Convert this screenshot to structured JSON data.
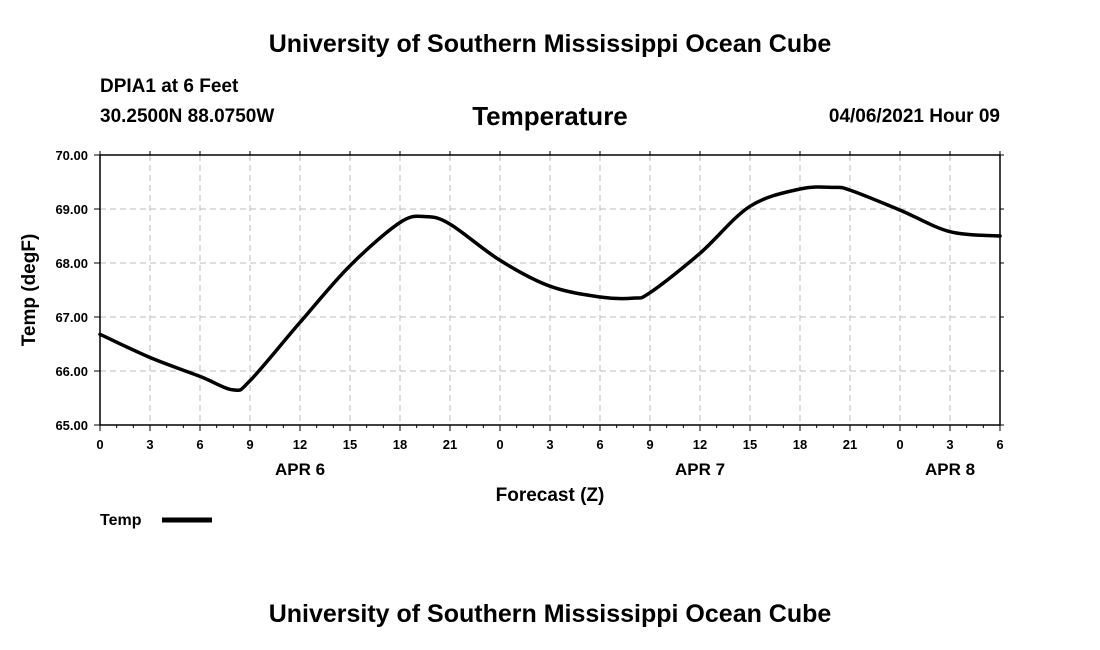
{
  "header": {
    "title": "University of Southern Mississippi Ocean Cube",
    "station": "DPIA1 at 6 Feet",
    "location": "30.2500N  88.0750W",
    "parameter": "Temperature",
    "timestamp": "04/06/2021 Hour 09"
  },
  "footer": {
    "title": "University of Southern Mississippi Ocean Cube"
  },
  "chart_data": {
    "type": "line",
    "title": "Temperature",
    "xlabel": "Forecast (Z)",
    "ylabel": "Temp (degF)",
    "ylim": [
      65,
      70
    ],
    "xlim": [
      0,
      54
    ],
    "grid": true,
    "x_tick_labels": [
      "0",
      "3",
      "6",
      "9",
      "12",
      "15",
      "18",
      "21",
      "0",
      "3",
      "6",
      "9",
      "12",
      "15",
      "18",
      "21",
      "0",
      "3",
      "6"
    ],
    "y_tick_labels": [
      "65.00",
      "66.00",
      "67.00",
      "68.00",
      "69.00",
      "70.00"
    ],
    "date_labels": [
      {
        "label": "APR 6",
        "x": 12
      },
      {
        "label": "APR 7",
        "x": 36
      },
      {
        "label": "APR 8",
        "x": 51
      }
    ],
    "legend": {
      "placement": "bottom-left",
      "label": "Temp"
    },
    "series": [
      {
        "name": "Temp",
        "color": "#000000",
        "x": [
          0,
          3,
          6,
          8,
          9,
          12,
          15,
          18,
          19.5,
          21,
          24,
          27,
          30,
          32,
          33,
          36,
          39,
          42,
          44,
          45,
          48,
          51,
          54
        ],
        "values": [
          66.68,
          66.25,
          65.9,
          65.65,
          65.82,
          66.9,
          67.95,
          68.75,
          68.86,
          68.72,
          68.05,
          67.57,
          67.37,
          67.35,
          67.45,
          68.18,
          69.05,
          69.37,
          69.4,
          69.35,
          68.98,
          68.58,
          68.5
        ]
      }
    ]
  }
}
